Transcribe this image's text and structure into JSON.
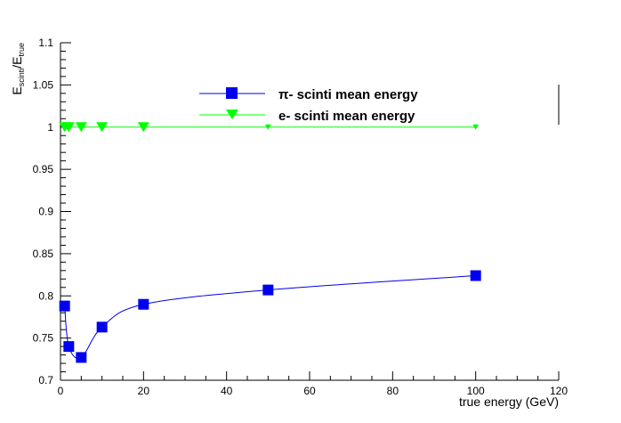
{
  "chart_data": {
    "type": "line",
    "xlabel": "true energy (GeV)",
    "ylabel": {
      "E1": "E",
      "sub1": "scinti",
      "slash": "/E",
      "sub2": "true"
    },
    "xlim": [
      0,
      120
    ],
    "ylim": [
      0.7,
      1.1
    ],
    "xticks": [
      0,
      20,
      40,
      60,
      80,
      100,
      120
    ],
    "xtick_labels": [
      "0",
      "20",
      "40",
      "60",
      "80",
      "100",
      "120"
    ],
    "yticks": [
      0.7,
      0.75,
      0.8,
      0.85,
      0.9,
      0.95,
      1,
      1.05,
      1.1
    ],
    "ytick_labels": [
      "0.7",
      "0.75",
      "0.8",
      "0.85",
      "0.9",
      "0.95",
      "1",
      "1.05",
      "1.1"
    ],
    "grid": false,
    "legend_position": "top-center",
    "series": [
      {
        "name": "π- scinti mean energy",
        "color": "#0000ee",
        "marker": "square",
        "smooth": true,
        "x": [
          1,
          2,
          5,
          10,
          20,
          50,
          100
        ],
        "y": [
          0.788,
          0.74,
          0.727,
          0.763,
          0.79,
          0.807,
          0.824
        ]
      },
      {
        "name": "e- scinti mean energy",
        "color": "#00ff00",
        "marker": "triangle-down",
        "smooth": false,
        "x": [
          1,
          2,
          5,
          10,
          20,
          50,
          100
        ],
        "y": [
          1.0,
          1.0,
          1.0,
          1.0,
          1.0,
          1.0,
          1.0
        ]
      }
    ]
  }
}
